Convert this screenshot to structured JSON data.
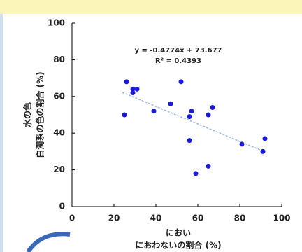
{
  "chart_data": {
    "type": "scatter",
    "x_label": [
      "におい",
      "におわないの割合 (%)"
    ],
    "y_label": [
      "水の色",
      "白濁系の色の割合 (%)"
    ],
    "annotations": [
      "y = -0.4774x + 73.677",
      "R² = 0.4393"
    ],
    "x": [
      25,
      26,
      29,
      29,
      31,
      39,
      47,
      52,
      56,
      57,
      56,
      59,
      65,
      67,
      65,
      81,
      91,
      92
    ],
    "series": [
      {
        "color": "#1a1adb",
        "values": [
          50,
          68,
          62,
          64,
          64,
          52,
          56,
          68,
          49,
          52,
          36,
          18,
          50,
          54,
          22,
          34,
          30,
          37
        ]
      }
    ],
    "trendline": {
      "color": "#9ab8e0",
      "x": [
        24,
        92
      ],
      "y": [
        62.2,
        29.8
      ]
    },
    "xlim": [
      0,
      100
    ],
    "xticks": [
      0,
      20,
      40,
      60,
      80,
      100
    ],
    "ylim": [
      0,
      100
    ],
    "yticks": [
      0,
      20,
      40,
      60,
      80,
      100
    ]
  }
}
